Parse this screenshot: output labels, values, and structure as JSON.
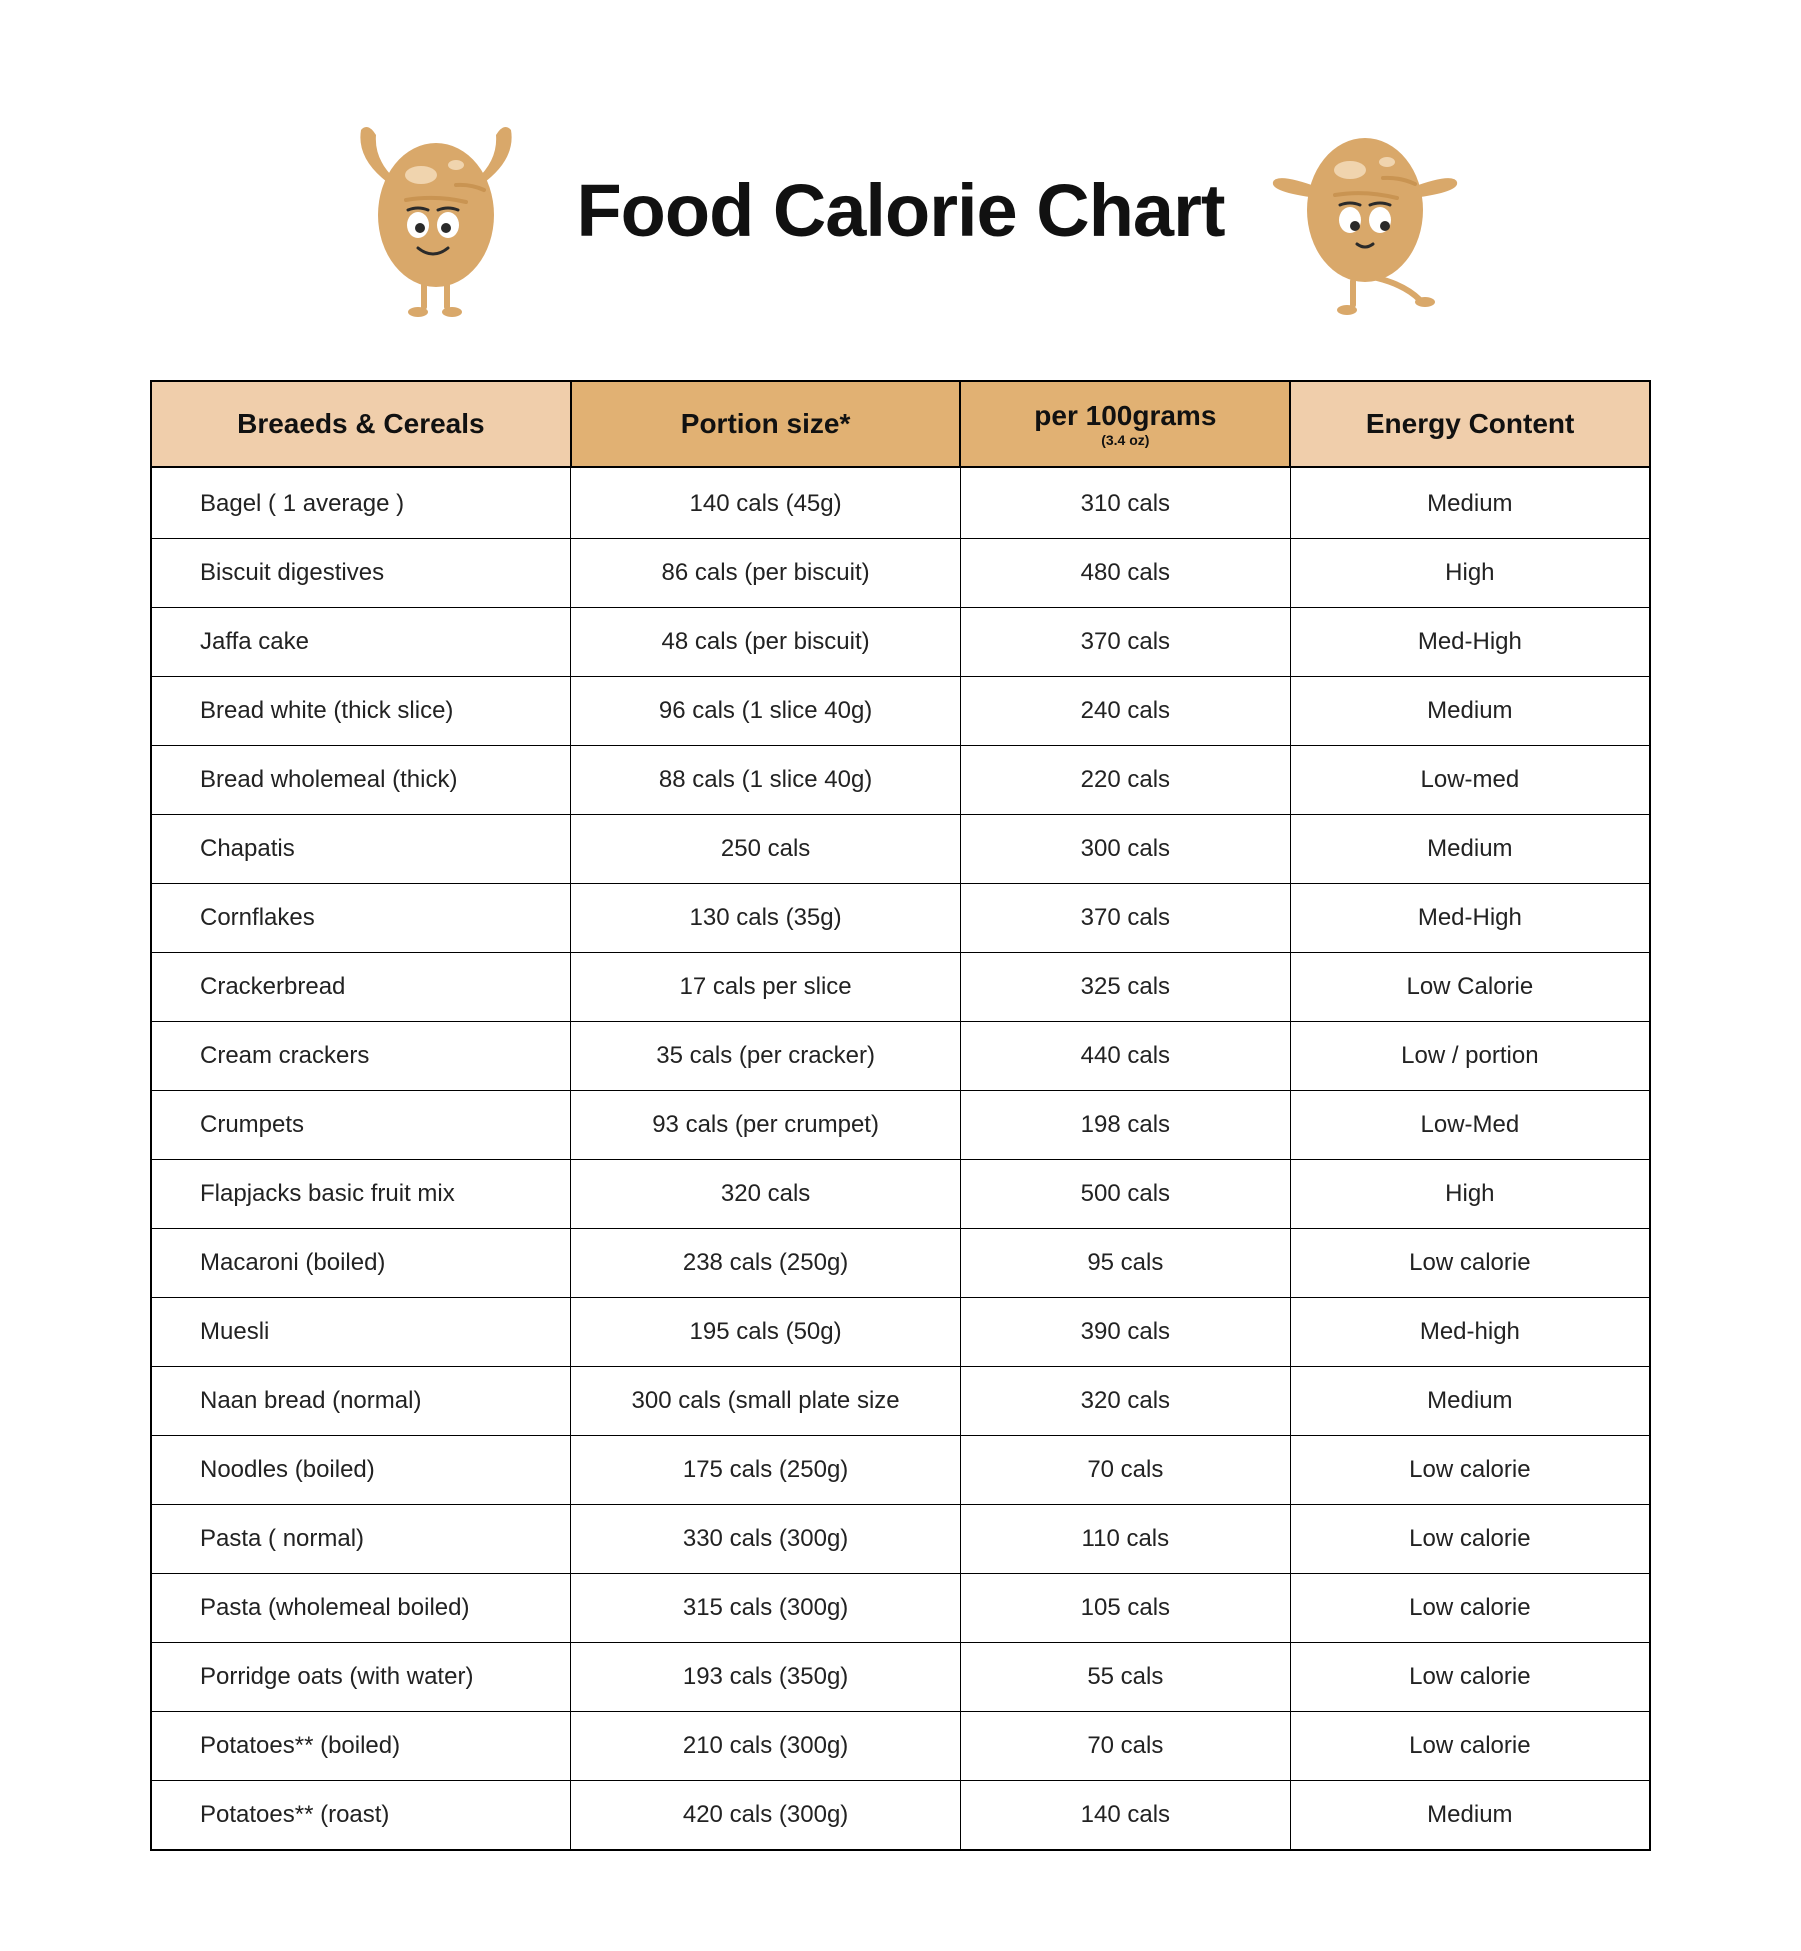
{
  "title": "Food Calorie Chart",
  "table": {
    "type": "table",
    "header_bg_outer": "#f0ceab",
    "header_bg_inner": "#e1b173",
    "border_color": "#000000",
    "header_fontsize": 28,
    "body_fontsize": 24,
    "columns": [
      {
        "label": "Breaeds & Cereals",
        "sub": ""
      },
      {
        "label": "Portion size*",
        "sub": ""
      },
      {
        "label": "per 100grams",
        "sub": "(3.4 oz)"
      },
      {
        "label": "Energy Content",
        "sub": ""
      }
    ],
    "rows": [
      [
        "Bagel ( 1 average )",
        "140 cals (45g)",
        "310 cals",
        "Medium"
      ],
      [
        "Biscuit digestives",
        "86 cals (per biscuit)",
        "480 cals",
        "High"
      ],
      [
        "Jaffa cake",
        "48 cals (per biscuit)",
        "370 cals",
        "Med-High"
      ],
      [
        "Bread white (thick slice)",
        "96 cals (1 slice 40g)",
        "240 cals",
        "Medium"
      ],
      [
        "Bread wholemeal (thick)",
        "88 cals (1 slice 40g)",
        "220 cals",
        "Low-med"
      ],
      [
        "Chapatis",
        "250 cals",
        "300 cals",
        "Medium"
      ],
      [
        "Cornflakes",
        "130 cals (35g)",
        "370 cals",
        "Med-High"
      ],
      [
        "Crackerbread",
        "17 cals per slice",
        "325 cals",
        "Low Calorie"
      ],
      [
        "Cream crackers",
        "35 cals (per cracker)",
        "440 cals",
        "Low / portion"
      ],
      [
        "Crumpets",
        "93 cals (per crumpet)",
        "198 cals",
        "Low-Med"
      ],
      [
        "Flapjacks basic fruit mix",
        "320 cals",
        "500 cals",
        "High"
      ],
      [
        "Macaroni (boiled)",
        "238 cals (250g)",
        "95 cals",
        "Low calorie"
      ],
      [
        "Muesli",
        "195 cals (50g)",
        "390 cals",
        "Med-high"
      ],
      [
        "Naan bread (normal)",
        "300 cals (small plate size",
        "320 cals",
        "Medium"
      ],
      [
        "Noodles (boiled)",
        "175 cals (250g)",
        "70 cals",
        "Low calorie"
      ],
      [
        "Pasta ( normal)",
        "330 cals (300g)",
        "110 cals",
        "Low calorie"
      ],
      [
        "Pasta (wholemeal boiled)",
        "315 cals (300g)",
        "105 cals",
        "Low calorie"
      ],
      [
        "Porridge oats (with water)",
        "193 cals (350g)",
        "55 cals",
        "Low calorie"
      ],
      [
        "Potatoes** (boiled)",
        "210 cals (300g)",
        "70 cals",
        "Low calorie"
      ],
      [
        "Potatoes** (roast)",
        "420 cals (300g)",
        "140 cals",
        "Medium"
      ]
    ]
  },
  "illustration": {
    "body_color": "#d9a86a",
    "highlight_color": "#f2d8b6",
    "stripe_color": "#c99452",
    "eye_white": "#ffffff",
    "eye_dark": "#2a2a2a",
    "mouth_color": "#2a2a2a",
    "limb_color": "#d9a86a"
  }
}
